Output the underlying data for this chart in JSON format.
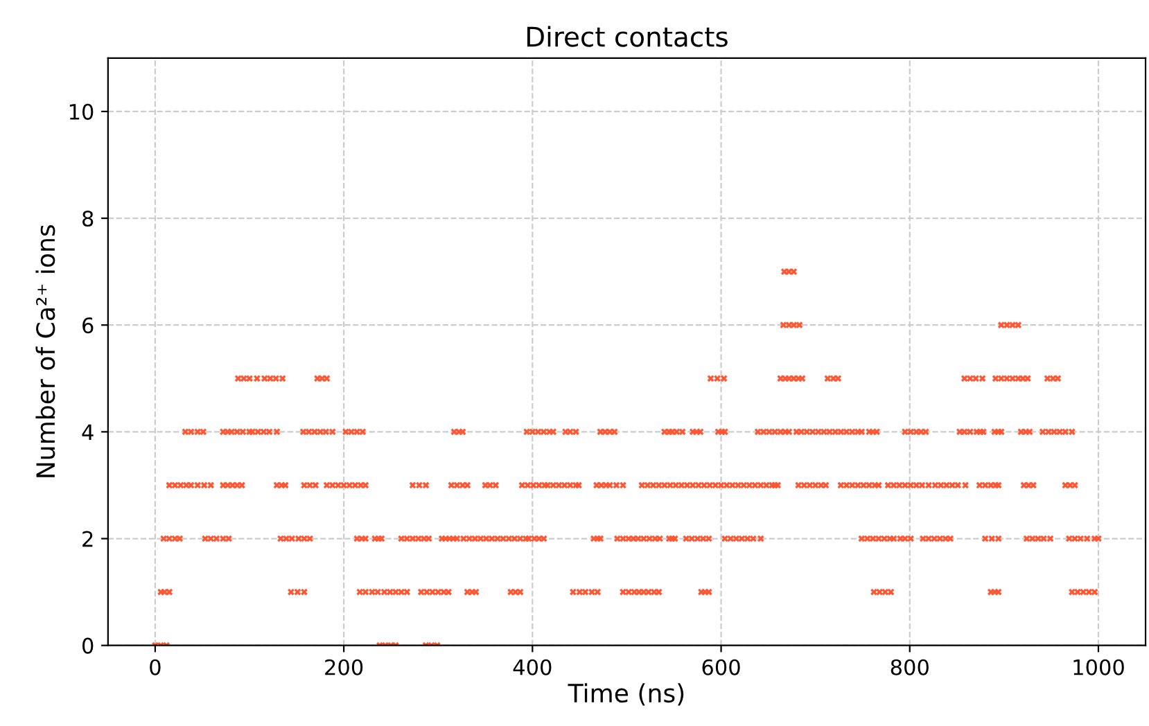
{
  "chart_data": {
    "type": "scatter",
    "title": "Direct contacts",
    "xlabel": "Time (ns)",
    "ylabel": "Number of Ca²⁺ ions",
    "xlim": [
      -50,
      1050
    ],
    "xticks": [
      0,
      200,
      400,
      600,
      800,
      1000
    ],
    "ylim": [
      0,
      11
    ],
    "yticks": [
      0,
      2,
      4,
      6,
      8,
      10
    ],
    "grid": true,
    "marker": "cross",
    "series": [
      {
        "color": "#ff5733",
        "x": [
          0,
          6,
          12,
          238,
          244,
          250,
          255,
          287,
          293,
          299
        ],
        "values": [
          0,
          0,
          0,
          0,
          0,
          0,
          0,
          0,
          0,
          0
        ]
      },
      {
        "color": "#ff5733",
        "x": [
          6,
          10,
          15,
          144,
          151,
          158,
          217,
          223,
          230,
          236,
          243,
          249,
          255,
          261,
          267,
          282,
          288,
          294,
          300,
          306,
          311,
          331,
          336,
          340,
          377,
          382,
          387,
          443,
          450,
          456,
          463,
          469,
          496,
          502,
          508,
          513,
          518,
          523,
          529,
          534,
          579,
          583,
          587,
          762,
          768,
          774,
          780,
          886,
          890,
          894,
          972,
          978,
          984,
          990,
          996
        ],
        "values": [
          1,
          1,
          1,
          1,
          1,
          1,
          1,
          1,
          1,
          1,
          1,
          1,
          1,
          1,
          1,
          1,
          1,
          1,
          1,
          1,
          1,
          1,
          1,
          1,
          1,
          1,
          1,
          1,
          1,
          1,
          1,
          1,
          1,
          1,
          1,
          1,
          1,
          1,
          1,
          1,
          1,
          1,
          1,
          1,
          1,
          1,
          1,
          1,
          1,
          1,
          1,
          1,
          1,
          1,
          1
        ]
      },
      {
        "color": "#ff5733",
        "x": [
          9,
          15,
          21,
          26,
          53,
          59,
          65,
          72,
          78,
          133,
          139,
          145,
          152,
          158,
          164,
          214,
          219,
          223,
          233,
          237,
          240,
          261,
          267,
          273,
          279,
          285,
          290,
          304,
          308,
          312,
          316,
          320,
          327,
          333,
          339,
          345,
          351,
          357,
          363,
          369,
          375,
          381,
          387,
          393,
          396,
          402,
          407,
          412,
          465,
          469,
          472,
          490,
          496,
          502,
          507,
          512,
          518,
          524,
          530,
          535,
          545,
          548,
          551,
          563,
          569,
          575,
          581,
          587,
          604,
          610,
          616,
          622,
          628,
          634,
          642,
          749,
          755,
          761,
          767,
          773,
          779,
          783,
          790,
          795,
          801,
          814,
          820,
          826,
          832,
          838,
          843,
          880,
          887,
          894,
          924,
          930,
          936,
          942,
          949,
          969,
          975,
          981,
          988,
          996,
          1000
        ],
        "values": [
          2,
          2,
          2,
          2,
          2,
          2,
          2,
          2,
          2,
          2,
          2,
          2,
          2,
          2,
          2,
          2,
          2,
          2,
          2,
          2,
          2,
          2,
          2,
          2,
          2,
          2,
          2,
          2,
          2,
          2,
          2,
          2,
          2,
          2,
          2,
          2,
          2,
          2,
          2,
          2,
          2,
          2,
          2,
          2,
          2,
          2,
          2,
          2,
          2,
          2,
          2,
          2,
          2,
          2,
          2,
          2,
          2,
          2,
          2,
          2,
          2,
          2,
          2,
          2,
          2,
          2,
          2,
          2,
          2,
          2,
          2,
          2,
          2,
          2,
          2,
          2,
          2,
          2,
          2,
          2,
          2,
          2,
          2,
          2,
          2,
          2,
          2,
          2,
          2,
          2,
          2,
          2,
          2,
          2,
          2,
          2,
          2,
          2,
          2,
          2,
          2,
          2,
          2,
          2,
          2
        ]
      },
      {
        "color": "#ff5733",
        "x": [
          15,
          21,
          27,
          33,
          38,
          45,
          52,
          59,
          72,
          77,
          82,
          87,
          92,
          129,
          134,
          138,
          158,
          164,
          170,
          182,
          188,
          194,
          200,
          206,
          212,
          218,
          223,
          273,
          280,
          287,
          314,
          320,
          326,
          331,
          350,
          355,
          361,
          389,
          395,
          401,
          407,
          413,
          416,
          422,
          428,
          434,
          440,
          446,
          449,
          468,
          473,
          478,
          482,
          489,
          496,
          516,
          522,
          528,
          534,
          540,
          546,
          552,
          558,
          564,
          570,
          576,
          582,
          588,
          594,
          600,
          606,
          612,
          618,
          624,
          630,
          636,
          642,
          648,
          654,
          657,
          660,
          682,
          688,
          694,
          700,
          706,
          711,
          727,
          733,
          739,
          745,
          751,
          757,
          763,
          767,
          777,
          783,
          789,
          795,
          801,
          807,
          813,
          820,
          827,
          833,
          839,
          845,
          851,
          859,
          874,
          880,
          886,
          891,
          894,
          921,
          926,
          931,
          965,
          970,
          975
        ],
        "values": [
          3,
          3,
          3,
          3,
          3,
          3,
          3,
          3,
          3,
          3,
          3,
          3,
          3,
          3,
          3,
          3,
          3,
          3,
          3,
          3,
          3,
          3,
          3,
          3,
          3,
          3,
          3,
          3,
          3,
          3,
          3,
          3,
          3,
          3,
          3,
          3,
          3,
          3,
          3,
          3,
          3,
          3,
          3,
          3,
          3,
          3,
          3,
          3,
          3,
          3,
          3,
          3,
          3,
          3,
          3,
          3,
          3,
          3,
          3,
          3,
          3,
          3,
          3,
          3,
          3,
          3,
          3,
          3,
          3,
          3,
          3,
          3,
          3,
          3,
          3,
          3,
          3,
          3,
          3,
          3,
          3,
          3,
          3,
          3,
          3,
          3,
          3,
          3,
          3,
          3,
          3,
          3,
          3,
          3,
          3,
          3,
          3,
          3,
          3,
          3,
          3,
          3,
          3,
          3,
          3,
          3,
          3,
          3,
          3,
          3,
          3,
          3,
          3,
          3,
          3,
          3,
          3,
          3,
          3,
          3
        ]
      },
      {
        "color": "#ff5733",
        "x": [
          32,
          38,
          45,
          51,
          72,
          77,
          81,
          87,
          93,
          100,
          103,
          109,
          115,
          121,
          129,
          157,
          163,
          169,
          175,
          181,
          188,
          202,
          208,
          214,
          220,
          317,
          322,
          326,
          394,
          400,
          406,
          412,
          418,
          422,
          435,
          440,
          446,
          472,
          477,
          482,
          487,
          540,
          545,
          548,
          553,
          559,
          570,
          574,
          578,
          597,
          601,
          604,
          639,
          645,
          651,
          657,
          663,
          668,
          672,
          680,
          685,
          691,
          697,
          703,
          709,
          715,
          721,
          727,
          733,
          739,
          745,
          749,
          757,
          761,
          765,
          795,
          801,
          807,
          812,
          817,
          853,
          858,
          864,
          871,
          875,
          878,
          890,
          894,
          897,
          918,
          923,
          927,
          941,
          947,
          953,
          959,
          965,
          972
        ],
        "values": [
          4,
          4,
          4,
          4,
          4,
          4,
          4,
          4,
          4,
          4,
          4,
          4,
          4,
          4,
          4,
          4,
          4,
          4,
          4,
          4,
          4,
          4,
          4,
          4,
          4,
          4,
          4,
          4,
          4,
          4,
          4,
          4,
          4,
          4,
          4,
          4,
          4,
          4,
          4,
          4,
          4,
          4,
          4,
          4,
          4,
          4,
          4,
          4,
          4,
          4,
          4,
          4,
          4,
          4,
          4,
          4,
          4,
          4,
          4,
          4,
          4,
          4,
          4,
          4,
          4,
          4,
          4,
          4,
          4,
          4,
          4,
          4,
          4,
          4,
          4,
          4,
          4,
          4,
          4,
          4,
          4,
          4,
          4,
          4,
          4,
          4,
          4,
          4,
          4,
          4,
          4,
          4,
          4,
          4,
          4,
          4,
          4,
          4
        ]
      },
      {
        "color": "#ff5733",
        "x": [
          88,
          94,
          100,
          108,
          116,
          122,
          128,
          135,
          172,
          177,
          182,
          589,
          596,
          603,
          663,
          668,
          672,
          677,
          682,
          686,
          713,
          719,
          724,
          858,
          864,
          870,
          877,
          891,
          897,
          903,
          909,
          915,
          920,
          925,
          946,
          952,
          957
        ],
        "values": [
          5,
          5,
          5,
          5,
          5,
          5,
          5,
          5,
          5,
          5,
          5,
          5,
          5,
          5,
          5,
          5,
          5,
          5,
          5,
          5,
          5,
          5,
          5,
          5,
          5,
          5,
          5,
          5,
          5,
          5,
          5,
          5,
          5,
          5,
          5,
          5,
          5
        ]
      },
      {
        "color": "#ff5733",
        "x": [
          666,
          672,
          677,
          683,
          897,
          903,
          909,
          915
        ],
        "values": [
          6,
          6,
          6,
          6,
          6,
          6,
          6,
          6
        ]
      },
      {
        "color": "#ff5733",
        "x": [
          667,
          672,
          677
        ],
        "values": [
          7,
          7,
          7
        ]
      }
    ]
  }
}
